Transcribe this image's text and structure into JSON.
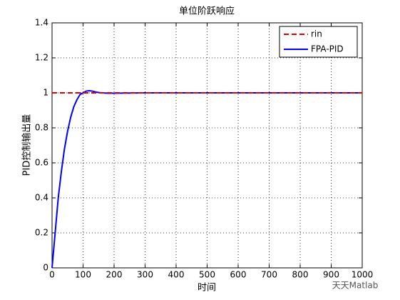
{
  "chart_data": {
    "type": "line",
    "title": "单位阶跃响应",
    "x_label": "时间",
    "y_label": "PID控制输出量",
    "watermark": "天天Matlab",
    "series": [
      {
        "name": "rin",
        "color": "#e00000",
        "dash": true,
        "x": [
          0,
          1000
        ],
        "values": [
          1,
          1
        ]
      },
      {
        "name": "FPA-PID",
        "color": "#0000ff",
        "dash": false,
        "x": [
          0,
          10,
          20,
          30,
          40,
          50,
          60,
          70,
          80,
          90,
          100,
          110,
          120,
          130,
          140,
          150,
          160,
          180,
          200,
          300,
          400,
          500,
          600,
          700,
          800,
          900,
          1000
        ],
        "values": [
          0,
          0.2,
          0.4,
          0.55,
          0.68,
          0.78,
          0.86,
          0.92,
          0.96,
          0.99,
          1.0,
          1.01,
          1.012,
          1.01,
          1.005,
          1.002,
          1.0,
          0.998,
          0.998,
          1,
          1,
          1,
          1,
          1,
          1,
          1,
          1
        ]
      }
    ],
    "xlim": [
      0,
      1000
    ],
    "xticks": [
      0,
      100,
      200,
      300,
      400,
      500,
      600,
      700,
      800,
      900,
      1000
    ],
    "ylim": [
      0,
      1.4
    ],
    "yticks": [
      0,
      0.2,
      0.4,
      0.6,
      0.8,
      1,
      1.2,
      1.4
    ],
    "grid": true,
    "legend": "top-right"
  }
}
